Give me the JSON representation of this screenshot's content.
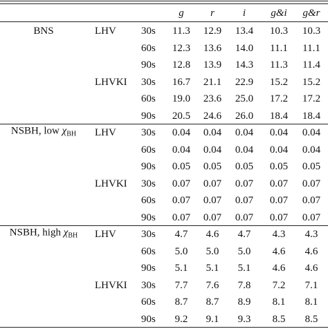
{
  "table": {
    "columns": [
      "g",
      "r",
      "i",
      "g&i",
      "g&r"
    ],
    "groups": [
      {
        "label": "BNS",
        "subgroups": [
          {
            "network": "LHV",
            "rows": [
              {
                "time": "30s",
                "values": [
                  "11.3",
                  "12.9",
                  "13.4",
                  "10.3",
                  "10.3"
                ]
              },
              {
                "time": "60s",
                "values": [
                  "12.3",
                  "13.6",
                  "14.0",
                  "11.1",
                  "11.1"
                ]
              },
              {
                "time": "90s",
                "values": [
                  "12.8",
                  "13.9",
                  "14.3",
                  "11.3",
                  "11.4"
                ]
              }
            ]
          },
          {
            "network": "LHVKI",
            "rows": [
              {
                "time": "30s",
                "values": [
                  "16.7",
                  "21.1",
                  "22.9",
                  "15.2",
                  "15.2"
                ]
              },
              {
                "time": "60s",
                "values": [
                  "19.0",
                  "23.6",
                  "25.0",
                  "17.2",
                  "17.2"
                ]
              },
              {
                "time": "90s",
                "values": [
                  "20.5",
                  "24.6",
                  "26.0",
                  "18.4",
                  "18.4"
                ]
              }
            ]
          }
        ]
      },
      {
        "label": "NSBH, low ",
        "symbol": "χ",
        "subscript": "BH",
        "subgroups": [
          {
            "network": "LHV",
            "rows": [
              {
                "time": "30s",
                "values": [
                  "0.04",
                  "0.04",
                  "0.04",
                  "0.04",
                  "0.04"
                ]
              },
              {
                "time": "60s",
                "values": [
                  "0.04",
                  "0.04",
                  "0.04",
                  "0.04",
                  "0.04"
                ]
              },
              {
                "time": "90s",
                "values": [
                  "0.05",
                  "0.05",
                  "0.05",
                  "0.05",
                  "0.05"
                ]
              }
            ]
          },
          {
            "network": "LHVKI",
            "rows": [
              {
                "time": "30s",
                "values": [
                  "0.07",
                  "0.07",
                  "0.07",
                  "0.07",
                  "0.07"
                ]
              },
              {
                "time": "60s",
                "values": [
                  "0.07",
                  "0.07",
                  "0.07",
                  "0.07",
                  "0.07"
                ]
              },
              {
                "time": "90s",
                "values": [
                  "0.07",
                  "0.07",
                  "0.07",
                  "0.07",
                  "0.07"
                ]
              }
            ]
          }
        ]
      },
      {
        "label": "NSBH, high ",
        "symbol": "χ",
        "subscript": "BH",
        "subgroups": [
          {
            "network": "LHV",
            "rows": [
              {
                "time": "30s",
                "values": [
                  "4.7",
                  "4.6",
                  "4.7",
                  "4.3",
                  "4.3"
                ]
              },
              {
                "time": "60s",
                "values": [
                  "5.0",
                  "5.0",
                  "5.0",
                  "4.6",
                  "4.6"
                ]
              },
              {
                "time": "90s",
                "values": [
                  "5.1",
                  "5.1",
                  "5.1",
                  "4.6",
                  "4.6"
                ]
              }
            ]
          },
          {
            "network": "LHVKI",
            "rows": [
              {
                "time": "30s",
                "values": [
                  "7.7",
                  "7.6",
                  "7.8",
                  "7.2",
                  "7.1"
                ]
              },
              {
                "time": "60s",
                "values": [
                  "8.7",
                  "8.7",
                  "8.9",
                  "8.1",
                  "8.1"
                ]
              },
              {
                "time": "90s",
                "values": [
                  "9.2",
                  "9.1",
                  "9.3",
                  "8.5",
                  "8.5"
                ]
              }
            ]
          }
        ]
      }
    ]
  }
}
